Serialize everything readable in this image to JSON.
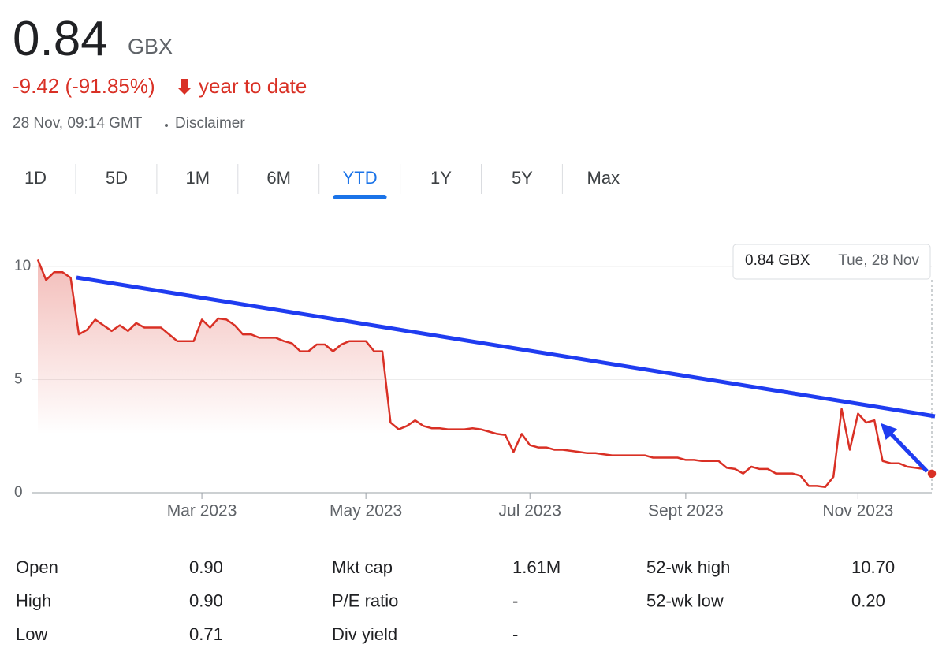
{
  "header": {
    "price": "0.84",
    "currency": "GBX",
    "change": "-9.42 (-91.85%)",
    "period": "year to date",
    "timestamp": "28 Nov, 09:14 GMT",
    "disclaimer": "Disclaimer"
  },
  "tabs": {
    "items": [
      "1D",
      "5D",
      "1M",
      "6M",
      "YTD",
      "1Y",
      "5Y",
      "Max"
    ],
    "active": 4
  },
  "chart_data": {
    "type": "line",
    "color": "#d93025",
    "categories": [
      null,
      null,
      null,
      null,
      null,
      null,
      null,
      null,
      null,
      null,
      null,
      null,
      null,
      null,
      null,
      null,
      null,
      null,
      null,
      null,
      "Mar 2023",
      null,
      null,
      null,
      null,
      null,
      null,
      null,
      null,
      null,
      null,
      null,
      null,
      null,
      null,
      null,
      null,
      null,
      null,
      null,
      "May 2023",
      null,
      null,
      null,
      null,
      null,
      null,
      null,
      null,
      null,
      null,
      null,
      null,
      null,
      null,
      null,
      null,
      null,
      null,
      null,
      "Jul 2023",
      null,
      null,
      null,
      null,
      null,
      null,
      null,
      null,
      null,
      null,
      null,
      null,
      null,
      null,
      null,
      null,
      null,
      null,
      "Sept 2023",
      null,
      null,
      null,
      null,
      null,
      null,
      null,
      null,
      null,
      null,
      null,
      null,
      null,
      null,
      null,
      null,
      null,
      null,
      null,
      null,
      "Nov 2023",
      null,
      null,
      null,
      null,
      null,
      null,
      null,
      null,
      null
    ],
    "values": [
      10.3,
      9.4,
      9.75,
      9.75,
      9.5,
      7.0,
      7.2,
      7.65,
      7.4,
      7.15,
      7.4,
      7.15,
      7.5,
      7.3,
      7.3,
      7.3,
      7.0,
      6.7,
      6.7,
      6.7,
      7.65,
      7.3,
      7.7,
      7.65,
      7.4,
      7.0,
      7.0,
      6.85,
      6.85,
      6.85,
      6.7,
      6.6,
      6.25,
      6.25,
      6.55,
      6.55,
      6.25,
      6.55,
      6.7,
      6.7,
      6.7,
      6.25,
      6.25,
      3.1,
      2.8,
      2.95,
      3.2,
      2.95,
      2.85,
      2.85,
      2.8,
      2.8,
      2.8,
      2.85,
      2.8,
      2.7,
      2.6,
      2.55,
      1.8,
      2.6,
      2.1,
      2.0,
      2.0,
      1.9,
      1.9,
      1.85,
      1.8,
      1.75,
      1.75,
      1.7,
      1.65,
      1.65,
      1.65,
      1.65,
      1.65,
      1.55,
      1.55,
      1.55,
      1.55,
      1.45,
      1.45,
      1.4,
      1.4,
      1.4,
      1.1,
      1.05,
      0.85,
      1.15,
      1.05,
      1.05,
      0.85,
      0.85,
      0.85,
      0.75,
      0.3,
      0.3,
      0.25,
      0.7,
      3.7,
      1.9,
      3.5,
      3.1,
      3.2,
      1.4,
      1.3,
      1.3,
      1.15,
      1.1,
      1.05,
      0.84
    ],
    "ylim": [
      0,
      11
    ],
    "yticks": [
      0,
      5,
      10
    ],
    "grid": true,
    "tooltip": {
      "price": "0.84 GBX",
      "date": "Tue, 28 Nov"
    }
  },
  "stats": {
    "rows": [
      [
        "Open",
        "0.90",
        "Mkt cap",
        "1.61M",
        "52-wk high",
        "10.70"
      ],
      [
        "High",
        "0.90",
        "P/E ratio",
        "-",
        "52-wk low",
        "0.20"
      ],
      [
        "Low",
        "0.71",
        "Div yield",
        "-"
      ]
    ]
  }
}
